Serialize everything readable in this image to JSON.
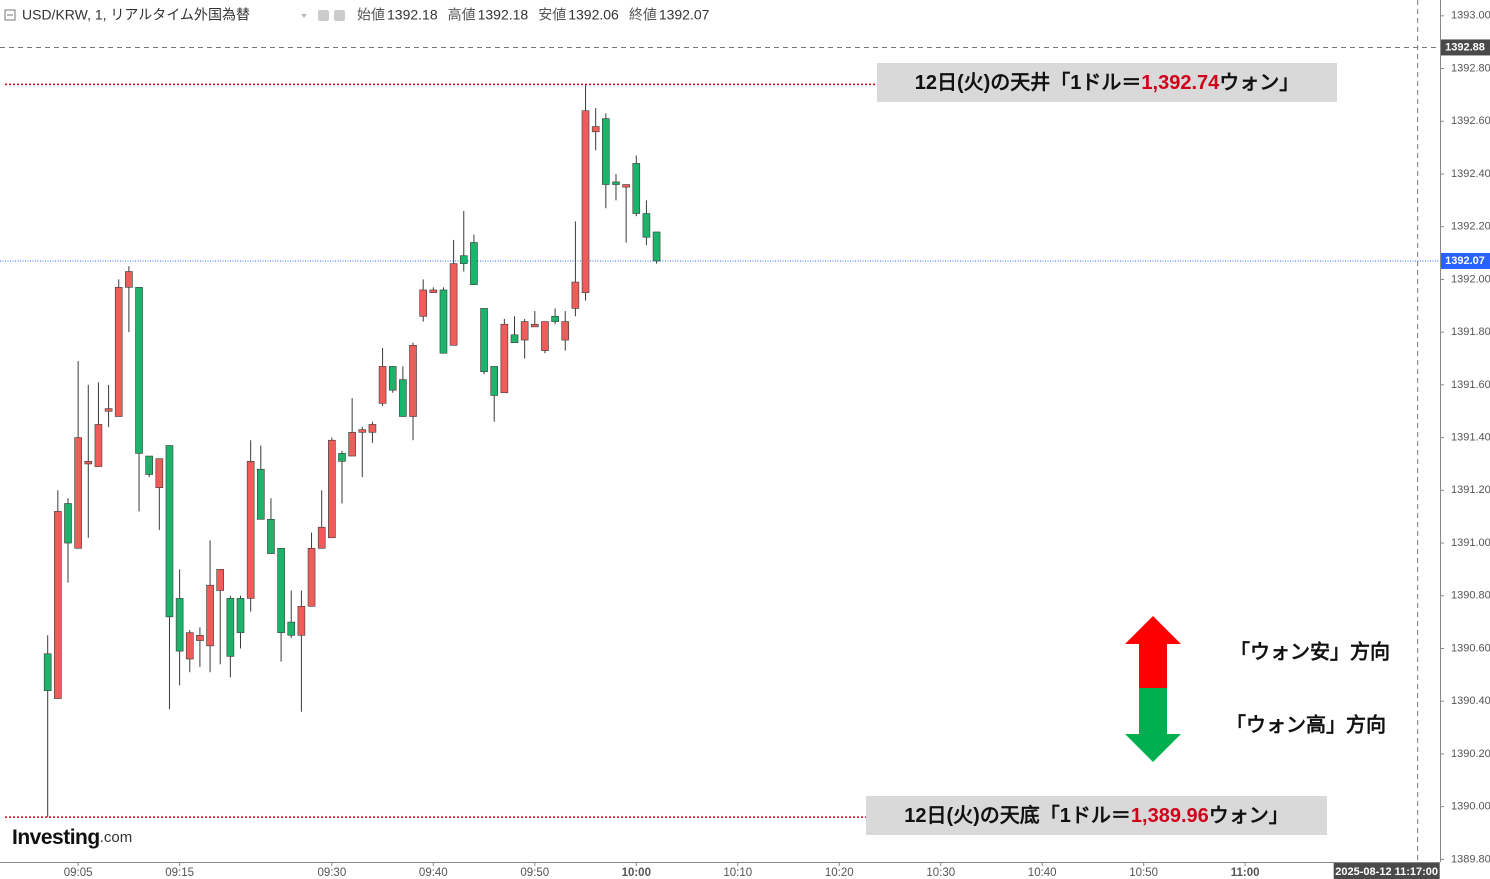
{
  "chart_data": {
    "type": "candlestick",
    "title": "USD/KRW, 1, リアルタイム外国為替",
    "legend": [
      {
        "label": "始値",
        "value": 1392.18
      },
      {
        "label": "高値",
        "value": 1392.18
      },
      {
        "label": "安値",
        "value": 1392.06
      },
      {
        "label": "終値",
        "value": 1392.07
      }
    ],
    "up_color": "#ef5d5a",
    "down_color": "#1db36b",
    "x": [
      542,
      543,
      544,
      545,
      546,
      547,
      548,
      549,
      550,
      551,
      552,
      553,
      554,
      555,
      556,
      557,
      558,
      559,
      560,
      561,
      562,
      563,
      564,
      565,
      566,
      567,
      568,
      569,
      570,
      571,
      572,
      573,
      574,
      575,
      576,
      577,
      578,
      579,
      580,
      581,
      582,
      583,
      584,
      585,
      586,
      587,
      588,
      589,
      590,
      591,
      592,
      593,
      594,
      595,
      596,
      597,
      598,
      599,
      600,
      601,
      602
    ],
    "open": [
      1390.58,
      1390.41,
      1391.15,
      1390.98,
      1391.3,
      1391.29,
      1391.5,
      1391.48,
      1391.97,
      1391.97,
      1391.33,
      1391.21,
      1391.37,
      1390.79,
      1390.56,
      1390.63,
      1390.61,
      1390.82,
      1390.79,
      1390.79,
      1390.79,
      1391.28,
      1391.09,
      1390.98,
      1390.7,
      1390.65,
      1390.76,
      1390.98,
      1391.02,
      1391.34,
      1391.33,
      1391.42,
      1391.42,
      1391.53,
      1391.67,
      1391.62,
      1391.48,
      1391.86,
      1391.95,
      1391.96,
      1391.75,
      1392.09,
      1392.14,
      1391.89,
      1391.67,
      1391.57,
      1391.79,
      1391.77,
      1391.82,
      1391.73,
      1391.86,
      1391.77,
      1391.89,
      1391.95,
      1392.56,
      1392.61,
      1392.37,
      1392.35,
      1392.44,
      1392.25,
      1392.18
    ],
    "high": [
      1390.65,
      1391.2,
      1391.17,
      1391.69,
      1391.6,
      1391.61,
      1391.6,
      1392.0,
      1392.05,
      1391.97,
      1391.33,
      1391.32,
      1391.37,
      1390.9,
      1390.67,
      1390.68,
      1391.01,
      1390.9,
      1390.8,
      1390.8,
      1391.39,
      1391.37,
      1391.17,
      1390.98,
      1390.82,
      1390.82,
      1391.04,
      1391.2,
      1391.4,
      1391.35,
      1391.55,
      1391.44,
      1391.46,
      1391.74,
      1391.67,
      1391.67,
      1391.76,
      1392.0,
      1391.97,
      1391.97,
      1392.15,
      1392.26,
      1392.17,
      1391.89,
      1391.67,
      1391.85,
      1391.86,
      1391.85,
      1391.88,
      1391.84,
      1391.89,
      1391.88,
      1392.22,
      1392.74,
      1392.65,
      1392.63,
      1392.4,
      1392.36,
      1392.47,
      1392.3,
      1392.18
    ],
    "low": [
      1389.96,
      1390.41,
      1390.85,
      1390.98,
      1391.02,
      1391.29,
      1391.44,
      1391.48,
      1391.8,
      1391.12,
      1391.25,
      1391.05,
      1390.37,
      1390.46,
      1390.51,
      1390.53,
      1390.51,
      1390.54,
      1390.49,
      1390.6,
      1390.74,
      1391.09,
      1390.96,
      1390.55,
      1390.64,
      1390.36,
      1390.76,
      1390.98,
      1391.02,
      1391.15,
      1391.33,
      1391.25,
      1391.38,
      1391.52,
      1391.57,
      1391.48,
      1391.39,
      1391.84,
      1391.95,
      1391.72,
      1391.75,
      1392.03,
      1391.98,
      1391.64,
      1391.46,
      1391.57,
      1391.76,
      1391.7,
      1391.82,
      1391.72,
      1391.83,
      1391.73,
      1391.86,
      1391.92,
      1392.49,
      1392.27,
      1392.3,
      1392.14,
      1392.24,
      1392.13,
      1392.06
    ],
    "close": [
      1390.44,
      1391.12,
      1391.0,
      1391.4,
      1391.31,
      1391.45,
      1391.51,
      1391.97,
      1392.03,
      1391.34,
      1391.26,
      1391.32,
      1390.72,
      1390.59,
      1390.66,
      1390.65,
      1390.84,
      1390.9,
      1390.57,
      1390.66,
      1391.31,
      1391.09,
      1390.96,
      1390.66,
      1390.65,
      1390.76,
      1390.98,
      1391.06,
      1391.39,
      1391.31,
      1391.42,
      1391.43,
      1391.45,
      1391.67,
      1391.58,
      1391.48,
      1391.75,
      1391.96,
      1391.96,
      1391.72,
      1392.06,
      1392.06,
      1391.98,
      1391.65,
      1391.56,
      1391.83,
      1391.76,
      1391.84,
      1391.83,
      1391.84,
      1391.84,
      1391.84,
      1391.99,
      1392.64,
      1392.58,
      1392.36,
      1392.36,
      1392.36,
      1392.25,
      1392.16,
      1392.07
    ],
    "xlim": [
      537.3,
      679.2
    ],
    "xticks": [
      {
        "value": 545,
        "label": "09:05"
      },
      {
        "value": 555,
        "label": "09:15"
      },
      {
        "value": 570,
        "label": "09:30"
      },
      {
        "value": 580,
        "label": "09:40"
      },
      {
        "value": 590,
        "label": "09:50"
      },
      {
        "value": 600,
        "label": "10:00"
      },
      {
        "value": 610,
        "label": "10:10"
      },
      {
        "value": 620,
        "label": "10:20"
      },
      {
        "value": 630,
        "label": "10:30"
      },
      {
        "value": 640,
        "label": "10:40"
      },
      {
        "value": 650,
        "label": "10:50"
      },
      {
        "value": 660,
        "label": "11:00"
      }
    ],
    "ylim": [
      1389.79,
      1393.06
    ],
    "yticks": [
      {
        "value": 1389.8,
        "label": "1389.80"
      },
      {
        "value": 1390.0,
        "label": "1390.00"
      },
      {
        "value": 1390.2,
        "label": "1390.20"
      },
      {
        "value": 1390.4,
        "label": "1390.40"
      },
      {
        "value": 1390.6,
        "label": "1390.60"
      },
      {
        "value": 1390.8,
        "label": "1390.80"
      },
      {
        "value": 1391.0,
        "label": "1391.00"
      },
      {
        "value": 1391.2,
        "label": "1391.20"
      },
      {
        "value": 1391.4,
        "label": "1391.40"
      },
      {
        "value": 1391.6,
        "label": "1391.60"
      },
      {
        "value": 1391.8,
        "label": "1391.80"
      },
      {
        "value": 1392.0,
        "label": "1392.00"
      },
      {
        "value": 1392.2,
        "label": "1392.20"
      },
      {
        "value": 1392.4,
        "label": "1392.40"
      },
      {
        "value": 1392.6,
        "label": "1392.60"
      },
      {
        "value": 1392.8,
        "label": "1392.80"
      },
      {
        "value": 1393.0,
        "label": "1393.00"
      }
    ],
    "last_price": 1392.07,
    "last_price_color": "#2962ff",
    "crosshair": {
      "price": 1392.88,
      "x": 677,
      "time": "2025-08-12 11:17:00"
    },
    "annotations": [
      {
        "prefix": "12日(火)の天井「1ドル＝",
        "value": 1392.74,
        "value_label": "1,392.74",
        "suffix": "ウォン」",
        "color": "#d0021b"
      },
      {
        "prefix": "12日(火)の天底「1ドル＝",
        "value": 1389.96,
        "value_label": "1,389.96",
        "suffix": "ウォン」",
        "color": "#d0021b"
      }
    ],
    "direction_labels": [
      "「ウォン安」方向",
      "「ウォン高」方向"
    ],
    "logo": {
      "main": "Investing",
      "suffix": ".com"
    }
  }
}
